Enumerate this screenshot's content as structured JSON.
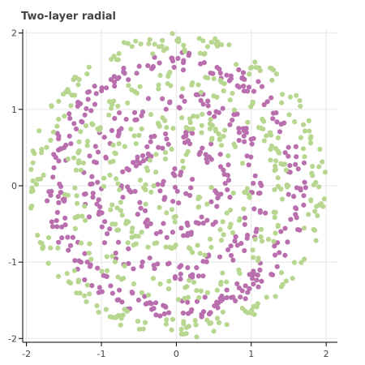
{
  "chart_data": {
    "type": "scatter",
    "title": "Two-layer radial",
    "xlabel": "",
    "ylabel": "",
    "xlim": [
      -2.05,
      2.15
    ],
    "ylim": [
      -2.05,
      2.05
    ],
    "xticks": [
      -2,
      -1,
      0,
      1,
      2
    ],
    "yticks": [
      -2,
      -1,
      0,
      1,
      2
    ],
    "grid": true,
    "legend": "none",
    "generator": {
      "seed": 7,
      "points_per_series": 520,
      "max_radius": 2,
      "bands": 8
    },
    "series": [
      {
        "color": "#b96fae",
        "band_parity": 0
      },
      {
        "color": "#b7d68f",
        "band_parity": 1
      }
    ]
  }
}
